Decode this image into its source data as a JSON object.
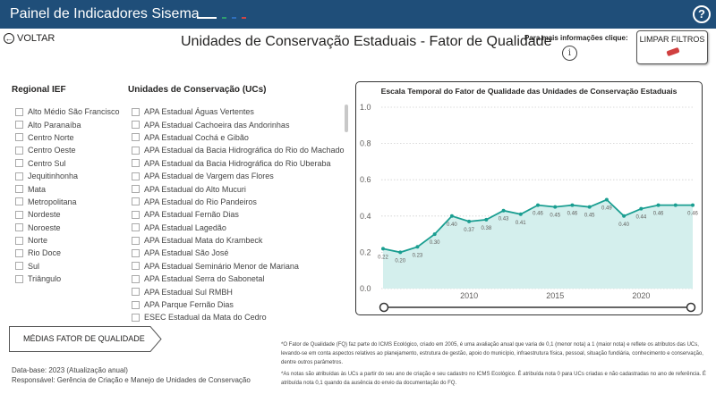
{
  "header": {
    "app_title": "Painel de Indicadores Sisema",
    "help_icon": "help-circle-icon",
    "accent_dots": [
      "#2e9e6e",
      "#2f6fbd",
      "#d04545"
    ]
  },
  "nav": {
    "back_label": "VOLTAR"
  },
  "page_title": "Unidades de Conservação Estaduais - Fator de Qualidade",
  "info": {
    "label": "Para mais informações clique:"
  },
  "clear_filters": {
    "label": "LIMPAR FILTROS"
  },
  "regional": {
    "header": "Regional IEF",
    "items": [
      "Alto Médio São Francisco",
      "Alto Paranaíba",
      "Centro Norte",
      "Centro Oeste",
      "Centro Sul",
      "Jequitinhonha",
      "Mata",
      "Metropolitana",
      "Nordeste",
      "Noroeste",
      "Norte",
      "Rio Doce",
      "Sul",
      "Triângulo"
    ]
  },
  "ucs": {
    "header": "Unidades de Conservação (UCs)",
    "items": [
      "APA Estadual Águas Vertentes",
      "APA Estadual Cachoeira das Andorinhas",
      "APA Estadual Cochá e Gibão",
      "APA Estadual da Bacia Hidrográfica do Rio do Machado",
      "APA Estadual da Bacia Hidrográfica do Rio Uberaba",
      "APA Estadual de Vargem das Flores",
      "APA Estadual do Alto Mucuri",
      "APA Estadual do Rio Pandeiros",
      "APA Estadual Fernão Dias",
      "APA Estadual Lagedão",
      "APA Estadual Mata do Krambeck",
      "APA Estadual São José",
      "APA Estadual Seminário Menor de Mariana",
      "APA Estadual Serra do Sabonetal",
      "APA Estadual Sul RMBH",
      "APA Parque Fernão Dias",
      "ESEC Estadual da Mata do Cedro"
    ]
  },
  "chart_data": {
    "type": "area",
    "title": "Escala Temporal do Fator de Qualidade das Unidades de Conservação Estaduais",
    "x": [
      2005,
      2006,
      2007,
      2008,
      2009,
      2010,
      2011,
      2012,
      2013,
      2014,
      2015,
      2016,
      2017,
      2018,
      2019,
      2020,
      2021,
      2022,
      2023
    ],
    "y": [
      0.22,
      0.2,
      0.23,
      0.3,
      0.4,
      0.37,
      0.38,
      0.43,
      0.41,
      0.46,
      0.45,
      0.46,
      0.45,
      0.49,
      0.4,
      0.44,
      0.46,
      0.46,
      0.46
    ],
    "data_labels": [
      "0.22",
      "0.20",
      "0.23",
      "0.30",
      "0.40",
      "0.37",
      "0.38",
      "0.43",
      "0.41",
      "0.46",
      "0.45",
      "0.46",
      "0.45",
      "0.49",
      "0.40",
      "0.44",
      "0.46",
      "",
      "0.46"
    ],
    "yticks": [
      "0.0",
      "0.2",
      "0.4",
      "0.6",
      "0.8",
      "1.0"
    ],
    "xticks": [
      2010,
      2015,
      2020
    ],
    "ylim": [
      0,
      1
    ],
    "xlabel": "",
    "ylabel": "",
    "grid": "horizontal-dashed",
    "line_color": "#1a9e91",
    "fill_color": "#d4efed"
  },
  "avg_button": {
    "label": "MÉDIAS FATOR DE QUALIDADE"
  },
  "footer": {
    "database": "Data-base: 2023 (Atualização anual)",
    "responsible": "Responsável: Gerência de Criação e Manejo de Unidades de Conservação"
  },
  "footnotes": [
    "*O Fator de Qualidade (FQ) faz parte do ICMS Ecológico, criado em 2005, é uma avaliação anual que varia de 0,1 (menor nota) a 1 (maior nota) e reflete os atributos das UCs, levando-se em conta aspectos relativos ao planejamento, estrutura de gestão, apoio do município, infraestrutura física, pessoal, situação fundiária, conhecimento e conservação, dentre outros parâmetros.",
    "*As notas são atribuídas às UCs a partir do seu ano de criação e seu cadastro no ICMS Ecológico. É atribuída nota 0 para UCs criadas e não cadastradas no ano de referência. É atribuída nota 0,1 quando da ausência do envio da documentação do FQ."
  ]
}
